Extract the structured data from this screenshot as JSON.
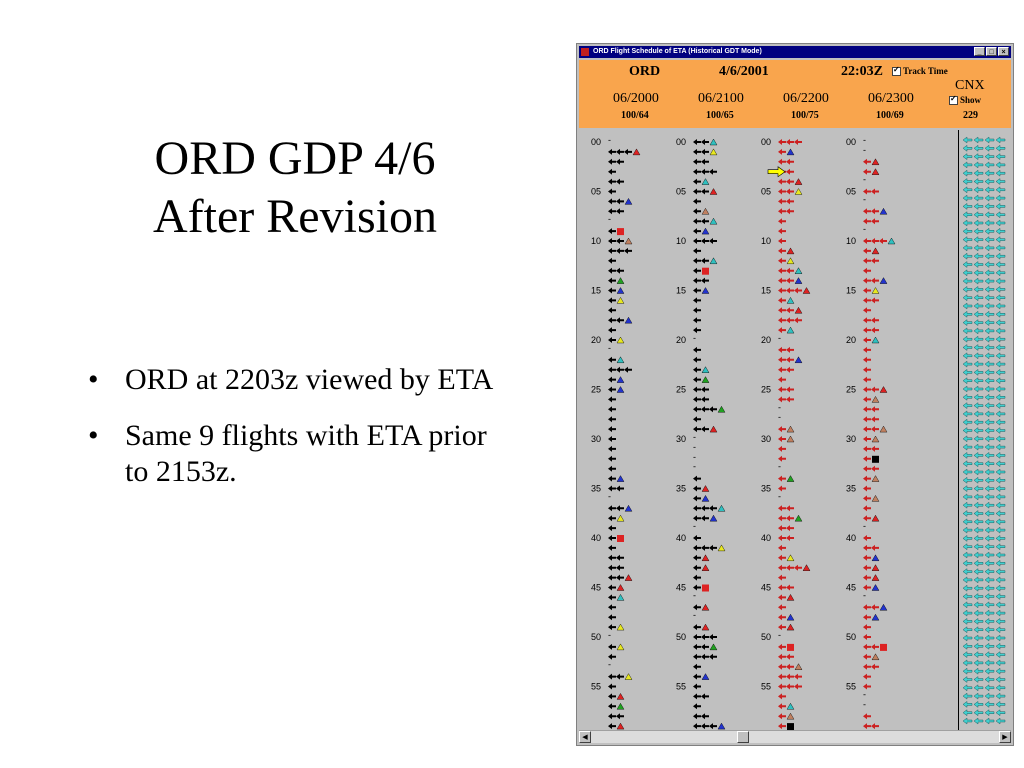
{
  "slide": {
    "title_line1": "ORD GDP 4/6",
    "title_line2": "After Revision",
    "bullets": [
      "ORD at 2203z viewed by ETA",
      "Same 9 flights with ETA prior to 2153z."
    ]
  },
  "window": {
    "title": "ORD Flight Schedule of ETA (Historical GDT Mode)",
    "header": {
      "airport": "ORD",
      "date": "4/6/2001",
      "time": "22:03Z",
      "track_time_label": "Track Time",
      "track_time_checked": true,
      "cnx_label": "CNX",
      "show_label": "Show",
      "show_checked": true,
      "hours": [
        {
          "label": "06/2000",
          "counts": "100/64"
        },
        {
          "label": "06/2100",
          "counts": "100/65"
        },
        {
          "label": "06/2200",
          "counts": "100/75"
        },
        {
          "label": "06/2300",
          "counts": "100/69"
        }
      ],
      "cnx_count": "229"
    },
    "minute_labels": [
      "00",
      "05",
      "10",
      "15",
      "20",
      "25",
      "30",
      "35",
      "40",
      "45",
      "50",
      "55"
    ],
    "current_time_marker_minute": 3
  },
  "colors": {
    "background": "#ffffff",
    "header": "#f9a54d",
    "grid": "#c0c0c0",
    "titlebar": "#000080",
    "arrow_black": "#000000",
    "arrow_red": "#cc2020",
    "tri_red": "#dd2222",
    "tri_blue": "#2233cc",
    "tri_tan": "#c08060",
    "tri_cyan": "#30c0c0",
    "tri_green": "#20a020",
    "tri_yellow": "#e8e820",
    "cnx_cyan": "#40d0d0",
    "marker_yellow": "#ffff00"
  },
  "icons": {
    "arrow": "left-arrow-icon",
    "triangle": "triangle-icon",
    "square": "square-icon",
    "cnx": "cnx-flight-icon"
  }
}
